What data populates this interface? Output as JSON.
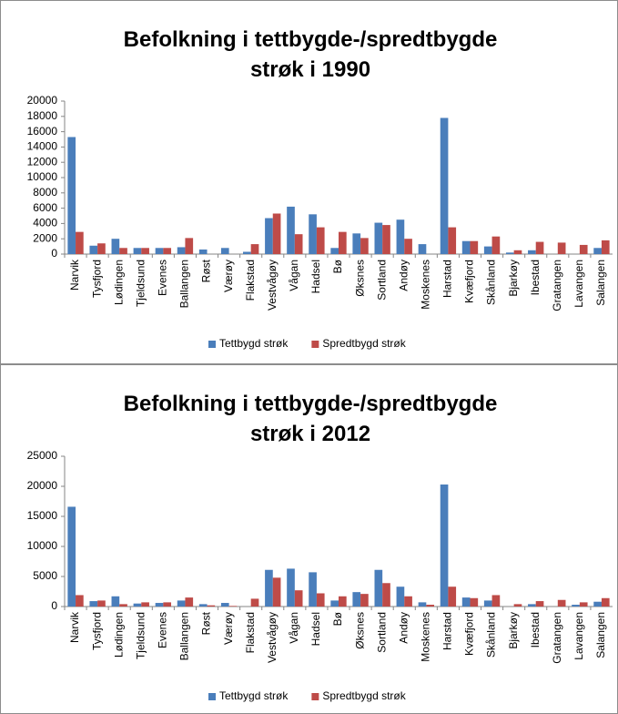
{
  "chart_data": [
    {
      "type": "bar",
      "title": "Befolkning i tettbygde-/spredtbygde strøk i 1990",
      "categories": [
        "Narvik",
        "Tysfjord",
        "Lødingen",
        "Tjeldsund",
        "Evenes",
        "Ballangen",
        "Røst",
        "Værøy",
        "Flakstad",
        "Vestvågøy",
        "Vågan",
        "Hadsel",
        "Bø",
        "Øksnes",
        "Sortland",
        "Andøy",
        "Moskenes",
        "Harstad",
        "Kvæfjord",
        "Skånland",
        "Bjarkøy",
        "Ibestad",
        "Gratangen",
        "Lavangen",
        "Salangen"
      ],
      "series": [
        {
          "name": "Tettbygd strøk",
          "color": "#4a7ebb",
          "values": [
            15300,
            1100,
            2000,
            800,
            800,
            900,
            600,
            800,
            300,
            4700,
            6200,
            5200,
            800,
            2700,
            4100,
            4500,
            1300,
            17800,
            1700,
            1000,
            200,
            500,
            0,
            0,
            800
          ]
        },
        {
          "name": "Spredtbygd strøk",
          "color": "#be4b48",
          "values": [
            2900,
            1400,
            800,
            800,
            800,
            2100,
            0,
            0,
            1300,
            5300,
            2600,
            3500,
            2900,
            2100,
            3800,
            2000,
            0,
            3500,
            1700,
            2300,
            500,
            1600,
            1500,
            1200,
            1800
          ]
        }
      ],
      "ylim": [
        0,
        20000
      ],
      "yticks": [
        0,
        2000,
        4000,
        6000,
        8000,
        10000,
        12000,
        14000,
        16000,
        18000,
        20000
      ],
      "legend": "bottom"
    },
    {
      "type": "bar",
      "title": "Befolkning i tettbygde-/spredtbygde strøk i 2012",
      "categories": [
        "Narvik",
        "Tysfjord",
        "Lødingen",
        "Tjeldsund",
        "Evenes",
        "Ballangen",
        "Røst",
        "Værøy",
        "Flakstad",
        "Vestvågøy",
        "Vågan",
        "Hadsel",
        "Bø",
        "Øksnes",
        "Sortland",
        "Andøy",
        "Moskenes",
        "Harstad",
        "Kvæfjord",
        "Skånland",
        "Bjarkøy",
        "Ibestad",
        "Gratangen",
        "Lavangen",
        "Salangen"
      ],
      "series": [
        {
          "name": "Tettbygd strøk",
          "color": "#4a7ebb",
          "values": [
            16600,
            900,
            1700,
            500,
            600,
            1000,
            400,
            600,
            0,
            6100,
            6300,
            5700,
            1000,
            2400,
            6100,
            3300,
            700,
            20300,
            1500,
            1000,
            0,
            400,
            0,
            300,
            800
          ]
        },
        {
          "name": "Spredtbygd strøk",
          "color": "#be4b48",
          "values": [
            1900,
            1000,
            400,
            700,
            700,
            1500,
            200,
            100,
            1300,
            4800,
            2700,
            2200,
            1700,
            2100,
            3900,
            1700,
            300,
            3300,
            1400,
            1900,
            400,
            900,
            1100,
            700,
            1400
          ]
        }
      ],
      "ylim": [
        0,
        25000
      ],
      "yticks": [
        0,
        5000,
        10000,
        15000,
        20000,
        25000
      ],
      "legend": "bottom"
    }
  ]
}
